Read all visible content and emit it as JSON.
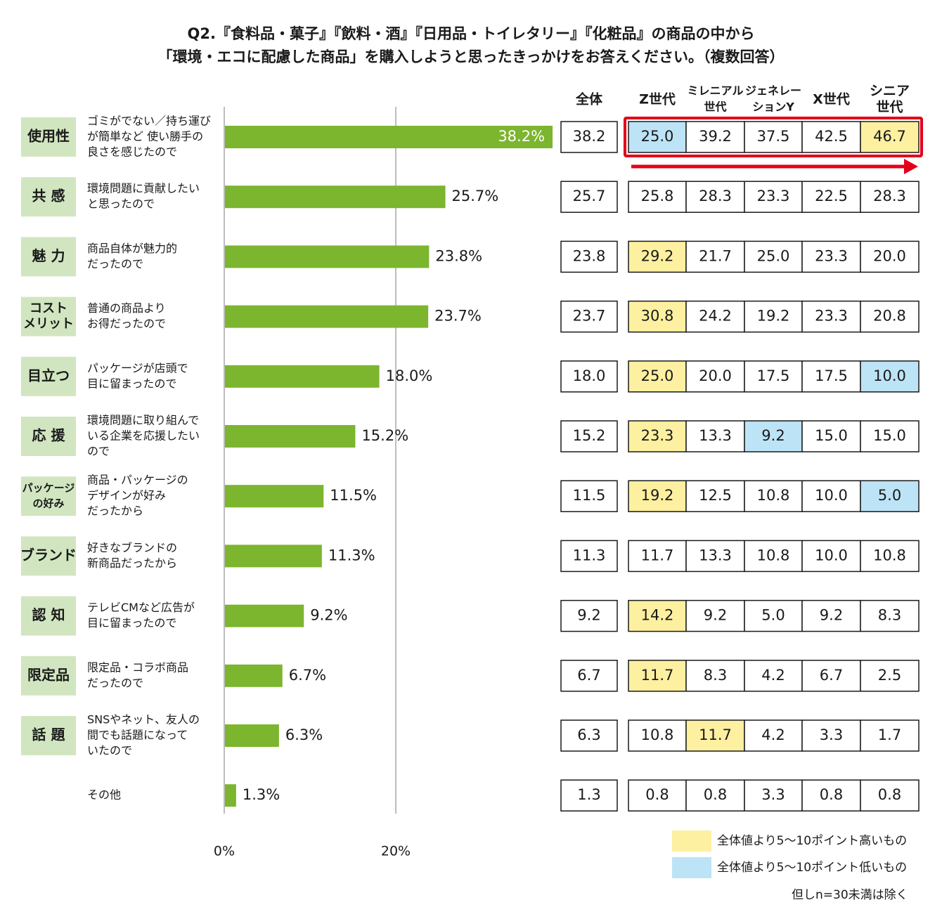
{
  "chart_data": {
    "type": "bar",
    "title_line1": "Q2.『食料品・菓子』『飲料・酒』『日用品・トイレタリー』『化粧品』の商品の中から",
    "title_line2": "「環境・エコに配慮した商品」を購入しようと思ったきっかけをお答えください。（複数回答）",
    "x_ticks": [
      "0%",
      "20%"
    ],
    "xlim": [
      0,
      40
    ],
    "categories": [
      {
        "tag": [
          "使用性"
        ],
        "desc": [
          "ゴミがでない／持ち運び",
          "が簡単など 使い勝手の",
          "良さを感じたので"
        ],
        "value": 38.2,
        "label": "38.2%"
      },
      {
        "tag": [
          "共 感"
        ],
        "desc": [
          "環境問題に貢献したい",
          "と思ったので"
        ],
        "value": 25.7,
        "label": "25.7%"
      },
      {
        "tag": [
          "魅 力"
        ],
        "desc": [
          "商品自体が魅力的",
          "だったので"
        ],
        "value": 23.8,
        "label": "23.8%"
      },
      {
        "tag": [
          "コスト",
          "メリット"
        ],
        "desc": [
          "普通の商品より",
          "お得だったので"
        ],
        "value": 23.7,
        "label": "23.7%"
      },
      {
        "tag": [
          "目立つ"
        ],
        "desc": [
          "パッケージが店頭で",
          "目に留まったので"
        ],
        "value": 18.0,
        "label": "18.0%"
      },
      {
        "tag": [
          "応 援"
        ],
        "desc": [
          "環境問題に取り組んで",
          "いる企業を応援したい",
          "ので"
        ],
        "value": 15.2,
        "label": "15.2%"
      },
      {
        "tag": [
          "パッケージ",
          "の好み"
        ],
        "desc": [
          "商品・パッケージの",
          "デザインが好み",
          "だったから"
        ],
        "value": 11.5,
        "label": "11.5%"
      },
      {
        "tag": [
          "ブランド"
        ],
        "desc": [
          "好きなブランドの",
          "新商品だったから"
        ],
        "value": 11.3,
        "label": "11.3%"
      },
      {
        "tag": [
          "認 知"
        ],
        "desc": [
          "テレビCMなど広告が",
          "目に留まったので"
        ],
        "value": 9.2,
        "label": "9.2%"
      },
      {
        "tag": [
          "限定品"
        ],
        "desc": [
          "限定品・コラボ商品",
          "だったので"
        ],
        "value": 6.7,
        "label": "6.7%"
      },
      {
        "tag": [
          "話 題"
        ],
        "desc": [
          "SNSやネット、友人の",
          "間でも話題になって",
          "いたので"
        ],
        "value": 6.3,
        "label": "6.3%"
      },
      {
        "tag": [],
        "desc": [
          "その他"
        ],
        "value": 1.3,
        "label": "1.3%"
      }
    ],
    "table": {
      "headers": [
        [
          "全体"
        ],
        [
          "Z世代"
        ],
        [
          "ミレニアル",
          "世代"
        ],
        [
          "ジェネレー",
          "ションY"
        ],
        [
          "X世代"
        ],
        [
          "シニア",
          "世代"
        ]
      ],
      "rows": [
        {
          "total": "38.2",
          "gens": [
            "25.0",
            "39.2",
            "37.5",
            "42.5",
            "46.7"
          ],
          "highlight": [
            "low",
            "",
            "",
            "",
            "high"
          ]
        },
        {
          "total": "25.7",
          "gens": [
            "25.8",
            "28.3",
            "23.3",
            "22.5",
            "28.3"
          ],
          "highlight": [
            "",
            "",
            "",
            "",
            ""
          ]
        },
        {
          "total": "23.8",
          "gens": [
            "29.2",
            "21.7",
            "25.0",
            "23.3",
            "20.0"
          ],
          "highlight": [
            "high",
            "",
            "",
            "",
            ""
          ]
        },
        {
          "total": "23.7",
          "gens": [
            "30.8",
            "24.2",
            "19.2",
            "23.3",
            "20.8"
          ],
          "highlight": [
            "high",
            "",
            "",
            "",
            ""
          ]
        },
        {
          "total": "18.0",
          "gens": [
            "25.0",
            "20.0",
            "17.5",
            "17.5",
            "10.0"
          ],
          "highlight": [
            "high",
            "",
            "",
            "",
            "low"
          ]
        },
        {
          "total": "15.2",
          "gens": [
            "23.3",
            "13.3",
            "9.2",
            "15.0",
            "15.0"
          ],
          "highlight": [
            "high",
            "",
            "low",
            "",
            ""
          ]
        },
        {
          "total": "11.5",
          "gens": [
            "19.2",
            "12.5",
            "10.8",
            "10.0",
            "5.0"
          ],
          "highlight": [
            "high",
            "",
            "",
            "",
            "low"
          ]
        },
        {
          "total": "11.3",
          "gens": [
            "11.7",
            "13.3",
            "10.8",
            "10.0",
            "10.8"
          ],
          "highlight": [
            "",
            "",
            "",
            "",
            ""
          ]
        },
        {
          "total": "9.2",
          "gens": [
            "14.2",
            "9.2",
            "5.0",
            "9.2",
            "8.3"
          ],
          "highlight": [
            "high",
            "",
            "",
            "",
            ""
          ]
        },
        {
          "total": "6.7",
          "gens": [
            "11.7",
            "8.3",
            "4.2",
            "6.7",
            "2.5"
          ],
          "highlight": [
            "high",
            "",
            "",
            "",
            ""
          ]
        },
        {
          "total": "6.3",
          "gens": [
            "10.8",
            "11.7",
            "4.2",
            "3.3",
            "1.7"
          ],
          "highlight": [
            "",
            "high",
            "",
            "",
            ""
          ]
        },
        {
          "total": "1.3",
          "gens": [
            "0.8",
            "0.8",
            "3.3",
            "0.8",
            "0.8"
          ],
          "highlight": [
            "",
            "",
            "",
            "",
            ""
          ]
        }
      ]
    },
    "legend": [
      {
        "key": "high",
        "text": "全体値より5～10ポイント高いもの",
        "color": "#fdf0a0"
      },
      {
        "key": "low",
        "text": "全体値より5～10ポイント低いもの",
        "color": "#bde3f6"
      }
    ],
    "note": "但しn=30未満は除く",
    "colors": {
      "bar": "#7cb52e",
      "tag_bg": "#d1e6c0",
      "frame": "#e3001b",
      "high": "#fdf0a0",
      "low": "#bde3f6",
      "grid": "#bdbdbd"
    }
  }
}
